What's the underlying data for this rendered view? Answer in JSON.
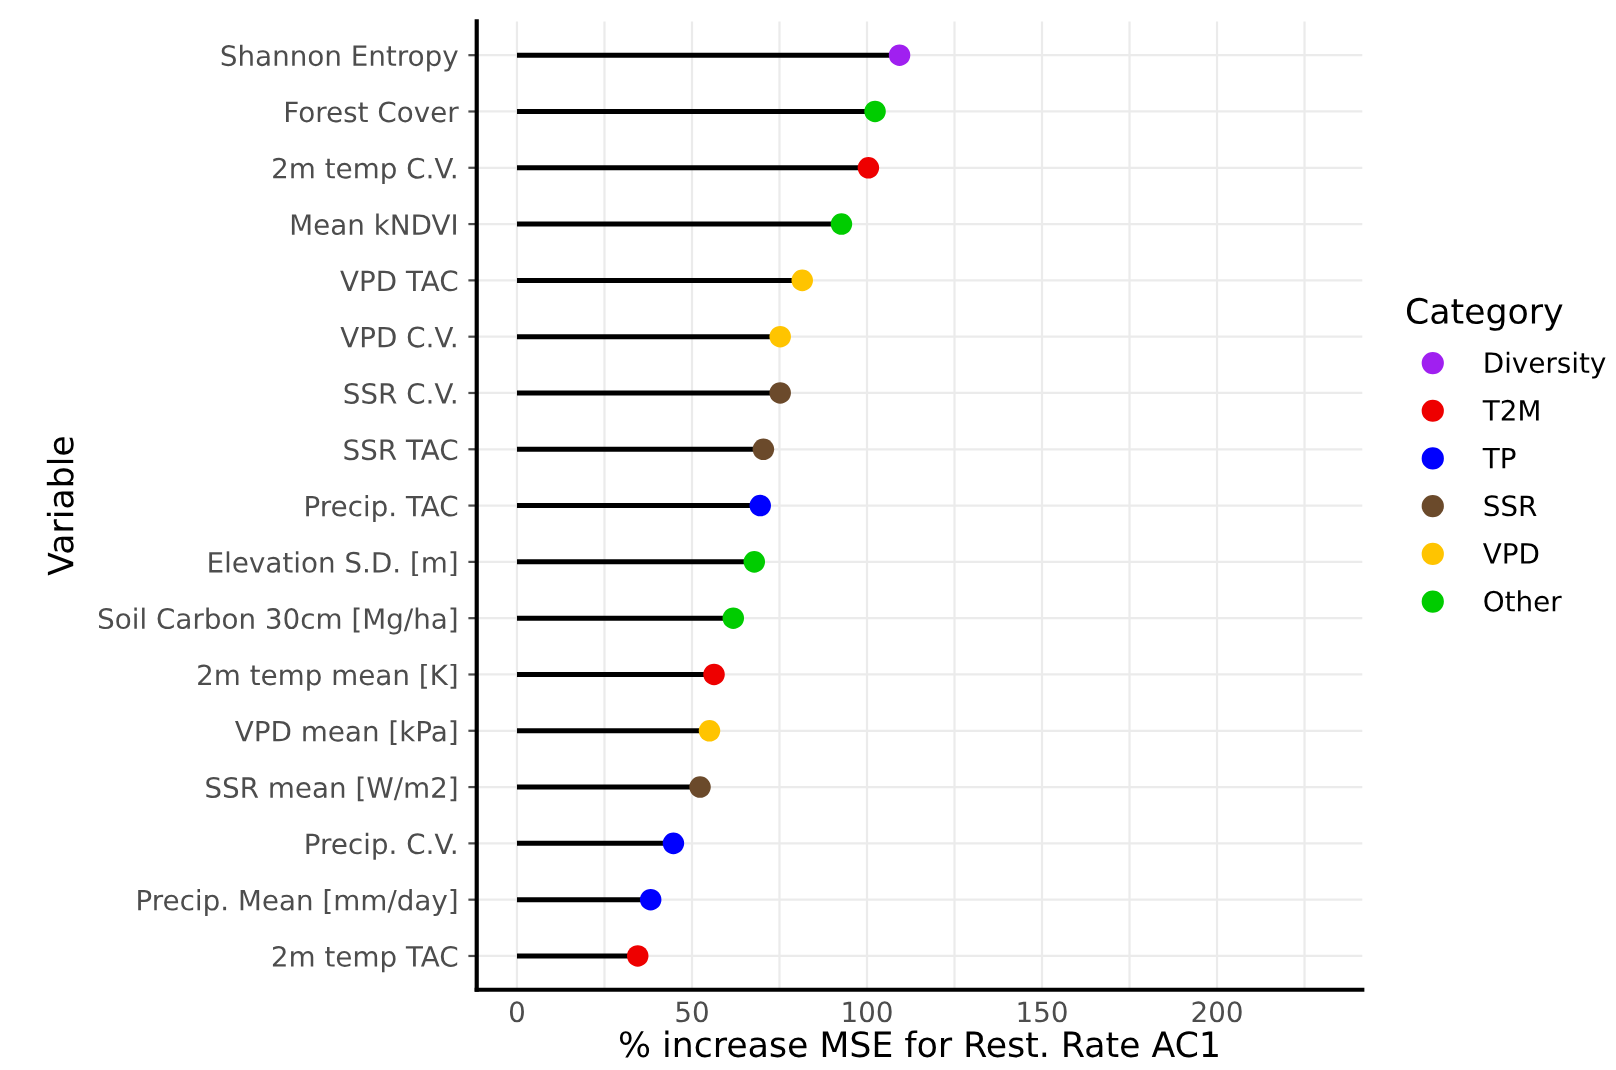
{
  "chart_data": {
    "type": "lollipop",
    "orientation": "horizontal",
    "xlabel": "% increase MSE for Rest. Rate AC1",
    "ylabel": "Variable",
    "legend_title": "Category",
    "legend": "right",
    "grid": true,
    "marker": "circle",
    "categories": [
      "Shannon Entropy",
      "Forest Cover",
      "2m temp C.V.",
      "Mean kNDVI",
      "VPD TAC",
      "VPD C.V.",
      "SSR C.V.",
      "SSR TAC",
      "Precip. TAC",
      "Elevation S.D. [m]",
      "Soil Carbon 30cm [Mg/ha]",
      "2m temp mean [K]",
      "VPD mean [kPa]",
      "SSR mean [W/m2]",
      "Precip. C.V.",
      "Precip. Mean [mm/day]",
      "2m temp TAC"
    ],
    "xlim": [
      -11.5,
      241.5
    ],
    "xticks": [
      0,
      {
        "value": 25,
        "label": null
      },
      50,
      {
        "value": 75,
        "label": null
      },
      100,
      {
        "value": 125,
        "label": null
      },
      150,
      {
        "value": 175,
        "label": null
      },
      200,
      {
        "value": 225,
        "label": null
      }
    ],
    "series": [
      {
        "name": "Diversity",
        "color": "#a020f0",
        "values": [
          109.3,
          null,
          null,
          null,
          null,
          null,
          null,
          null,
          null,
          null,
          null,
          null,
          null,
          null,
          null,
          null,
          null
        ]
      },
      {
        "name": "T2M",
        "color": "#ee0000",
        "values": [
          null,
          null,
          100.4,
          null,
          null,
          null,
          null,
          null,
          null,
          null,
          null,
          56.3,
          null,
          null,
          null,
          null,
          34.5
        ]
      },
      {
        "name": "TP",
        "color": "#0000ff",
        "values": [
          null,
          null,
          null,
          null,
          null,
          null,
          null,
          null,
          69.5,
          null,
          null,
          null,
          null,
          null,
          44.7,
          38.2,
          null
        ]
      },
      {
        "name": "SSR",
        "color": "#6b4a2b",
        "values": [
          null,
          null,
          null,
          null,
          null,
          null,
          75.2,
          70.4,
          null,
          null,
          null,
          null,
          null,
          52.3,
          null,
          null,
          null
        ]
      },
      {
        "name": "VPD",
        "color": "#ffc400",
        "values": [
          null,
          null,
          null,
          null,
          81.5,
          75.2,
          null,
          null,
          null,
          null,
          null,
          null,
          55.0,
          null,
          null,
          null,
          null
        ]
      },
      {
        "name": "Other",
        "color": "#00cc00",
        "values": [
          null,
          102.3,
          null,
          92.7,
          null,
          null,
          null,
          null,
          null,
          67.8,
          61.8,
          null,
          null,
          null,
          null,
          null,
          null
        ]
      }
    ]
  }
}
